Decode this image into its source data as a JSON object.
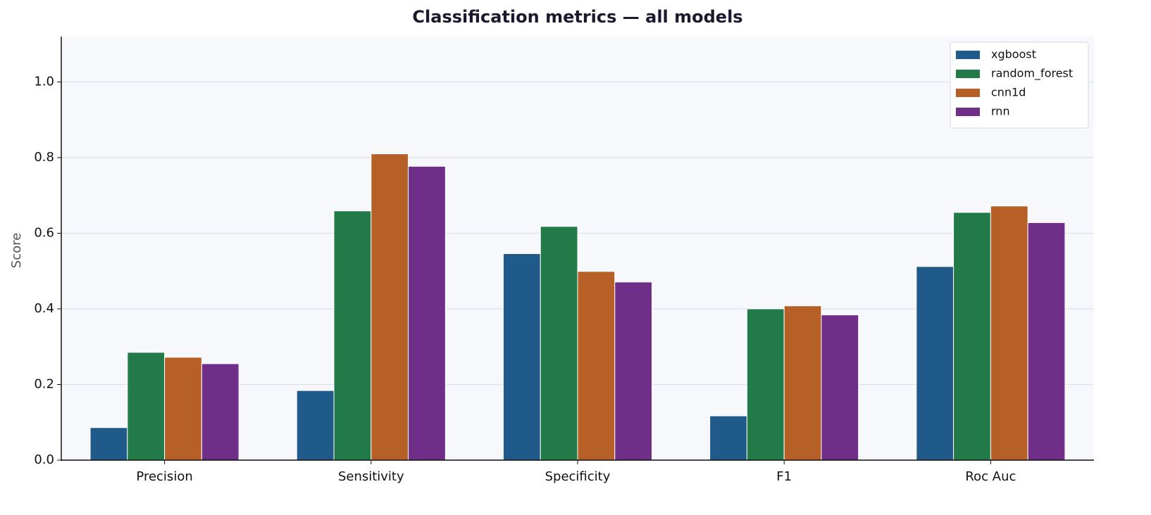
{
  "chart_data": {
    "type": "bar",
    "title": "Classification metrics — all models",
    "ylabel": "Score",
    "categories": [
      "Precision",
      "Sensitivity",
      "Specificity",
      "F1",
      "Roc Auc"
    ],
    "series": [
      {
        "name": "xgboost",
        "color": "#1f5a8a",
        "values": [
          0.086,
          0.184,
          0.546,
          0.117,
          0.512
        ]
      },
      {
        "name": "random_forest",
        "color": "#217a47",
        "values": [
          0.285,
          0.659,
          0.618,
          0.4,
          0.655
        ]
      },
      {
        "name": "cnn1d",
        "color": "#b66028",
        "values": [
          0.272,
          0.81,
          0.499,
          0.408,
          0.672
        ]
      },
      {
        "name": "rnn",
        "color": "#6f2e88",
        "values": [
          0.255,
          0.777,
          0.471,
          0.384,
          0.628
        ]
      }
    ],
    "ylim": [
      0,
      1.12
    ],
    "yticks": [
      {
        "value": 0,
        "label": "0.0"
      },
      0.2,
      0.4,
      0.6,
      0.8,
      {
        "value": 1,
        "label": "1.0"
      }
    ],
    "grid": true,
    "legend": "upper right"
  }
}
